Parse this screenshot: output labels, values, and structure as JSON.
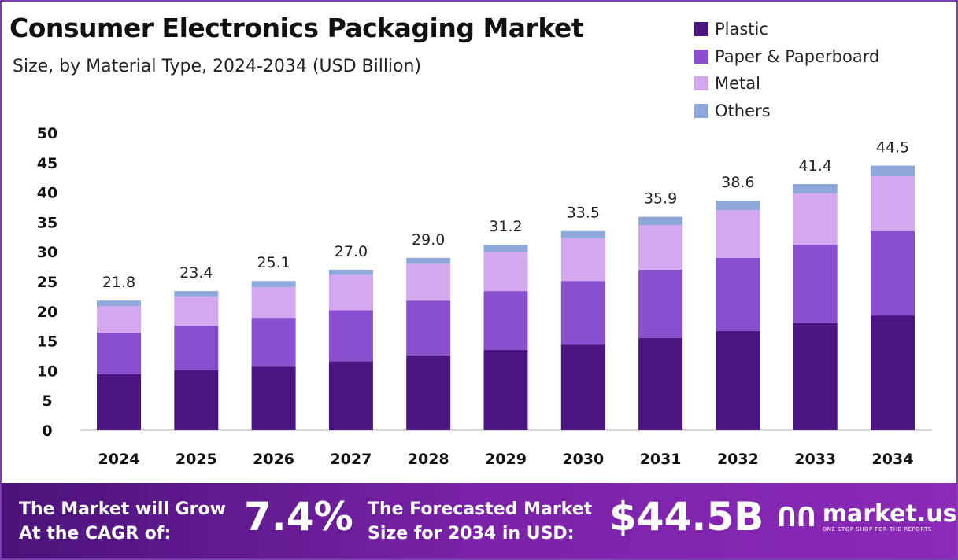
{
  "chart_data": {
    "type": "bar",
    "stacked": true,
    "title": "Consumer Electronics Packaging Market",
    "subtitle": "Size, by Material Type, 2024-2034 (USD Billion)",
    "categories": [
      "2024",
      "2025",
      "2026",
      "2027",
      "2028",
      "2029",
      "2030",
      "2031",
      "2032",
      "2033",
      "2034"
    ],
    "series": [
      {
        "name": "Plastic",
        "color": "#4a1580",
        "values": [
          9.4,
          10.1,
          10.8,
          11.6,
          12.6,
          13.5,
          14.4,
          15.5,
          16.7,
          18.0,
          19.3
        ]
      },
      {
        "name": "Paper & Paperboard",
        "color": "#8a4fcf",
        "values": [
          7.0,
          7.5,
          8.1,
          8.6,
          9.2,
          9.9,
          10.7,
          11.5,
          12.3,
          13.2,
          14.2
        ]
      },
      {
        "name": "Metal",
        "color": "#d4a8ef",
        "values": [
          4.5,
          4.9,
          5.2,
          5.9,
          6.2,
          6.6,
          7.2,
          7.5,
          8.0,
          8.6,
          9.2
        ]
      },
      {
        "name": "Others",
        "color": "#8ea8dc",
        "values": [
          0.9,
          0.9,
          1.0,
          0.9,
          1.0,
          1.2,
          1.2,
          1.4,
          1.6,
          1.6,
          1.8
        ]
      }
    ],
    "totals": [
      "21.8",
      "23.4",
      "25.1",
      "27.0",
      "29.0",
      "31.2",
      "33.5",
      "35.9",
      "38.6",
      "41.4",
      "44.5"
    ],
    "yticks": [
      "0",
      "5",
      "10",
      "15",
      "20",
      "25",
      "30",
      "35",
      "40",
      "45",
      "50"
    ],
    "ylim": [
      0,
      50
    ],
    "legend": "top-right",
    "grid": false
  },
  "banner": {
    "cagr_label": "The Market will Grow At the CAGR of:",
    "cagr_value": "7.4%",
    "forecast_label": "The Forecasted Market Size for 2034 in USD:",
    "forecast_value": "$44.5B",
    "logo_name": "market.us",
    "logo_tagline": "ONE STOP SHOP FOR THE REPORTS"
  }
}
